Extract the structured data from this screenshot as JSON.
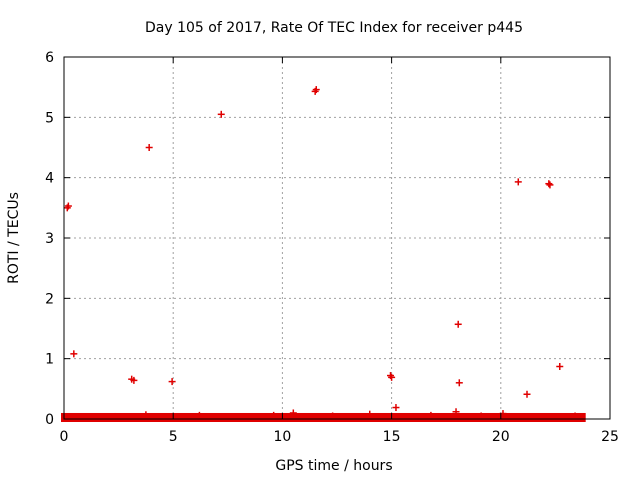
{
  "chart_data": {
    "type": "scatter",
    "title": "Day 105 of 2017, Rate Of TEC Index for receiver p445",
    "xlabel": "GPS time / hours",
    "ylabel": "ROTI / TECUs",
    "xlim": [
      0,
      25
    ],
    "ylim": [
      0,
      6
    ],
    "xticks": [
      0,
      5,
      10,
      15,
      20,
      25
    ],
    "yticks": [
      0,
      1,
      2,
      3,
      4,
      5,
      6
    ],
    "grid": true,
    "marker": "plus",
    "color": "#e00000",
    "series": [
      {
        "name": "ROTI",
        "points": [
          [
            0.15,
            3.5
          ],
          [
            0.2,
            3.53
          ],
          [
            0.45,
            1.08
          ],
          [
            3.1,
            0.66
          ],
          [
            3.2,
            0.64
          ],
          [
            3.9,
            4.5
          ],
          [
            4.95,
            0.62
          ],
          [
            7.2,
            5.05
          ],
          [
            11.5,
            5.43
          ],
          [
            11.55,
            5.46
          ],
          [
            14.95,
            0.72
          ],
          [
            15.0,
            0.69
          ],
          [
            15.2,
            0.19
          ],
          [
            18.05,
            1.57
          ],
          [
            18.1,
            0.6
          ],
          [
            17.95,
            0.12
          ],
          [
            20.8,
            3.93
          ],
          [
            21.2,
            0.41
          ],
          [
            22.2,
            3.9
          ],
          [
            22.25,
            3.88
          ],
          [
            22.7,
            0.87
          ],
          [
            10.5,
            0.1
          ],
          [
            14.0,
            0.08
          ],
          [
            20.1,
            0.09
          ],
          [
            3.75,
            0.07
          ],
          [
            6.2,
            0.06
          ],
          [
            9.6,
            0.06
          ],
          [
            12.3,
            0.05
          ],
          [
            16.8,
            0.06
          ],
          [
            19.1,
            0.05
          ],
          [
            23.4,
            0.05
          ]
        ]
      }
    ],
    "baseline_band": {
      "segments": [
        [
          0,
          2.25
        ],
        [
          2.45,
          23.75
        ]
      ],
      "typical_range": [
        0.0,
        0.05
      ]
    }
  }
}
